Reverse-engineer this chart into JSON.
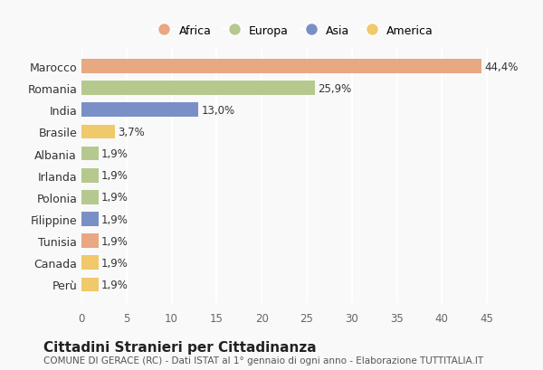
{
  "countries": [
    "Marocco",
    "Romania",
    "India",
    "Brasile",
    "Albania",
    "Irlanda",
    "Polonia",
    "Filippine",
    "Tunisia",
    "Canada",
    "Perù"
  ],
  "values": [
    44.4,
    25.9,
    13.0,
    3.7,
    1.9,
    1.9,
    1.9,
    1.9,
    1.9,
    1.9,
    1.9
  ],
  "labels": [
    "44,4%",
    "25,9%",
    "13,0%",
    "3,7%",
    "1,9%",
    "1,9%",
    "1,9%",
    "1,9%",
    "1,9%",
    "1,9%",
    "1,9%"
  ],
  "continents": [
    "Africa",
    "Europa",
    "Asia",
    "America",
    "Europa",
    "Europa",
    "Europa",
    "Asia",
    "Africa",
    "America",
    "America"
  ],
  "colors": {
    "Africa": "#E8A882",
    "Europa": "#B5C98E",
    "Asia": "#7B8FC7",
    "America": "#F0C96A"
  },
  "legend_order": [
    "Africa",
    "Europa",
    "Asia",
    "America"
  ],
  "title": "Cittadini Stranieri per Cittadinanza",
  "subtitle": "COMUNE DI GERACE (RC) - Dati ISTAT al 1° gennaio di ogni anno - Elaborazione TUTTITALIA.IT",
  "xlim": [
    0,
    47
  ],
  "xticks": [
    0,
    5,
    10,
    15,
    20,
    25,
    30,
    35,
    40,
    45
  ],
  "background_color": "#f9f9f9",
  "grid_color": "#ffffff"
}
